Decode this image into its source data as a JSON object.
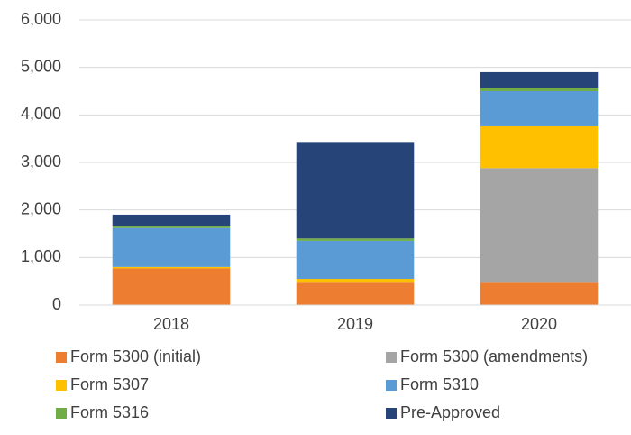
{
  "chart_data": {
    "type": "stacked_bar",
    "categories": [
      "2018",
      "2019",
      "2020"
    ],
    "series": [
      {
        "name": "Form 5300 (initial)",
        "color": "#ed7d31",
        "values": [
          770,
          470,
          470
        ]
      },
      {
        "name": "Form 5300 (amendments)",
        "color": "#a5a5a5",
        "values": [
          0,
          0,
          2410
        ]
      },
      {
        "name": "Form 5307",
        "color": "#ffc000",
        "values": [
          30,
          80,
          880
        ]
      },
      {
        "name": "Form 5310",
        "color": "#5b9bd5",
        "values": [
          820,
          800,
          740
        ]
      },
      {
        "name": "Form 5316",
        "color": "#70ad47",
        "values": [
          50,
          50,
          70
        ]
      },
      {
        "name": "Pre-Approved",
        "color": "#264478",
        "values": [
          230,
          2030,
          330
        ]
      }
    ],
    "ylim": [
      0,
      6000
    ],
    "yticks": [
      0,
      {
        "value": 1000,
        "label": "1,000"
      },
      {
        "value": 2000,
        "label": "2,000"
      },
      {
        "value": 3000,
        "label": "3,000"
      },
      {
        "value": 4000,
        "label": "4,000"
      },
      {
        "value": 5000,
        "label": "5,000"
      },
      {
        "value": 6000,
        "label": "6,000"
      }
    ],
    "grid": true
  }
}
